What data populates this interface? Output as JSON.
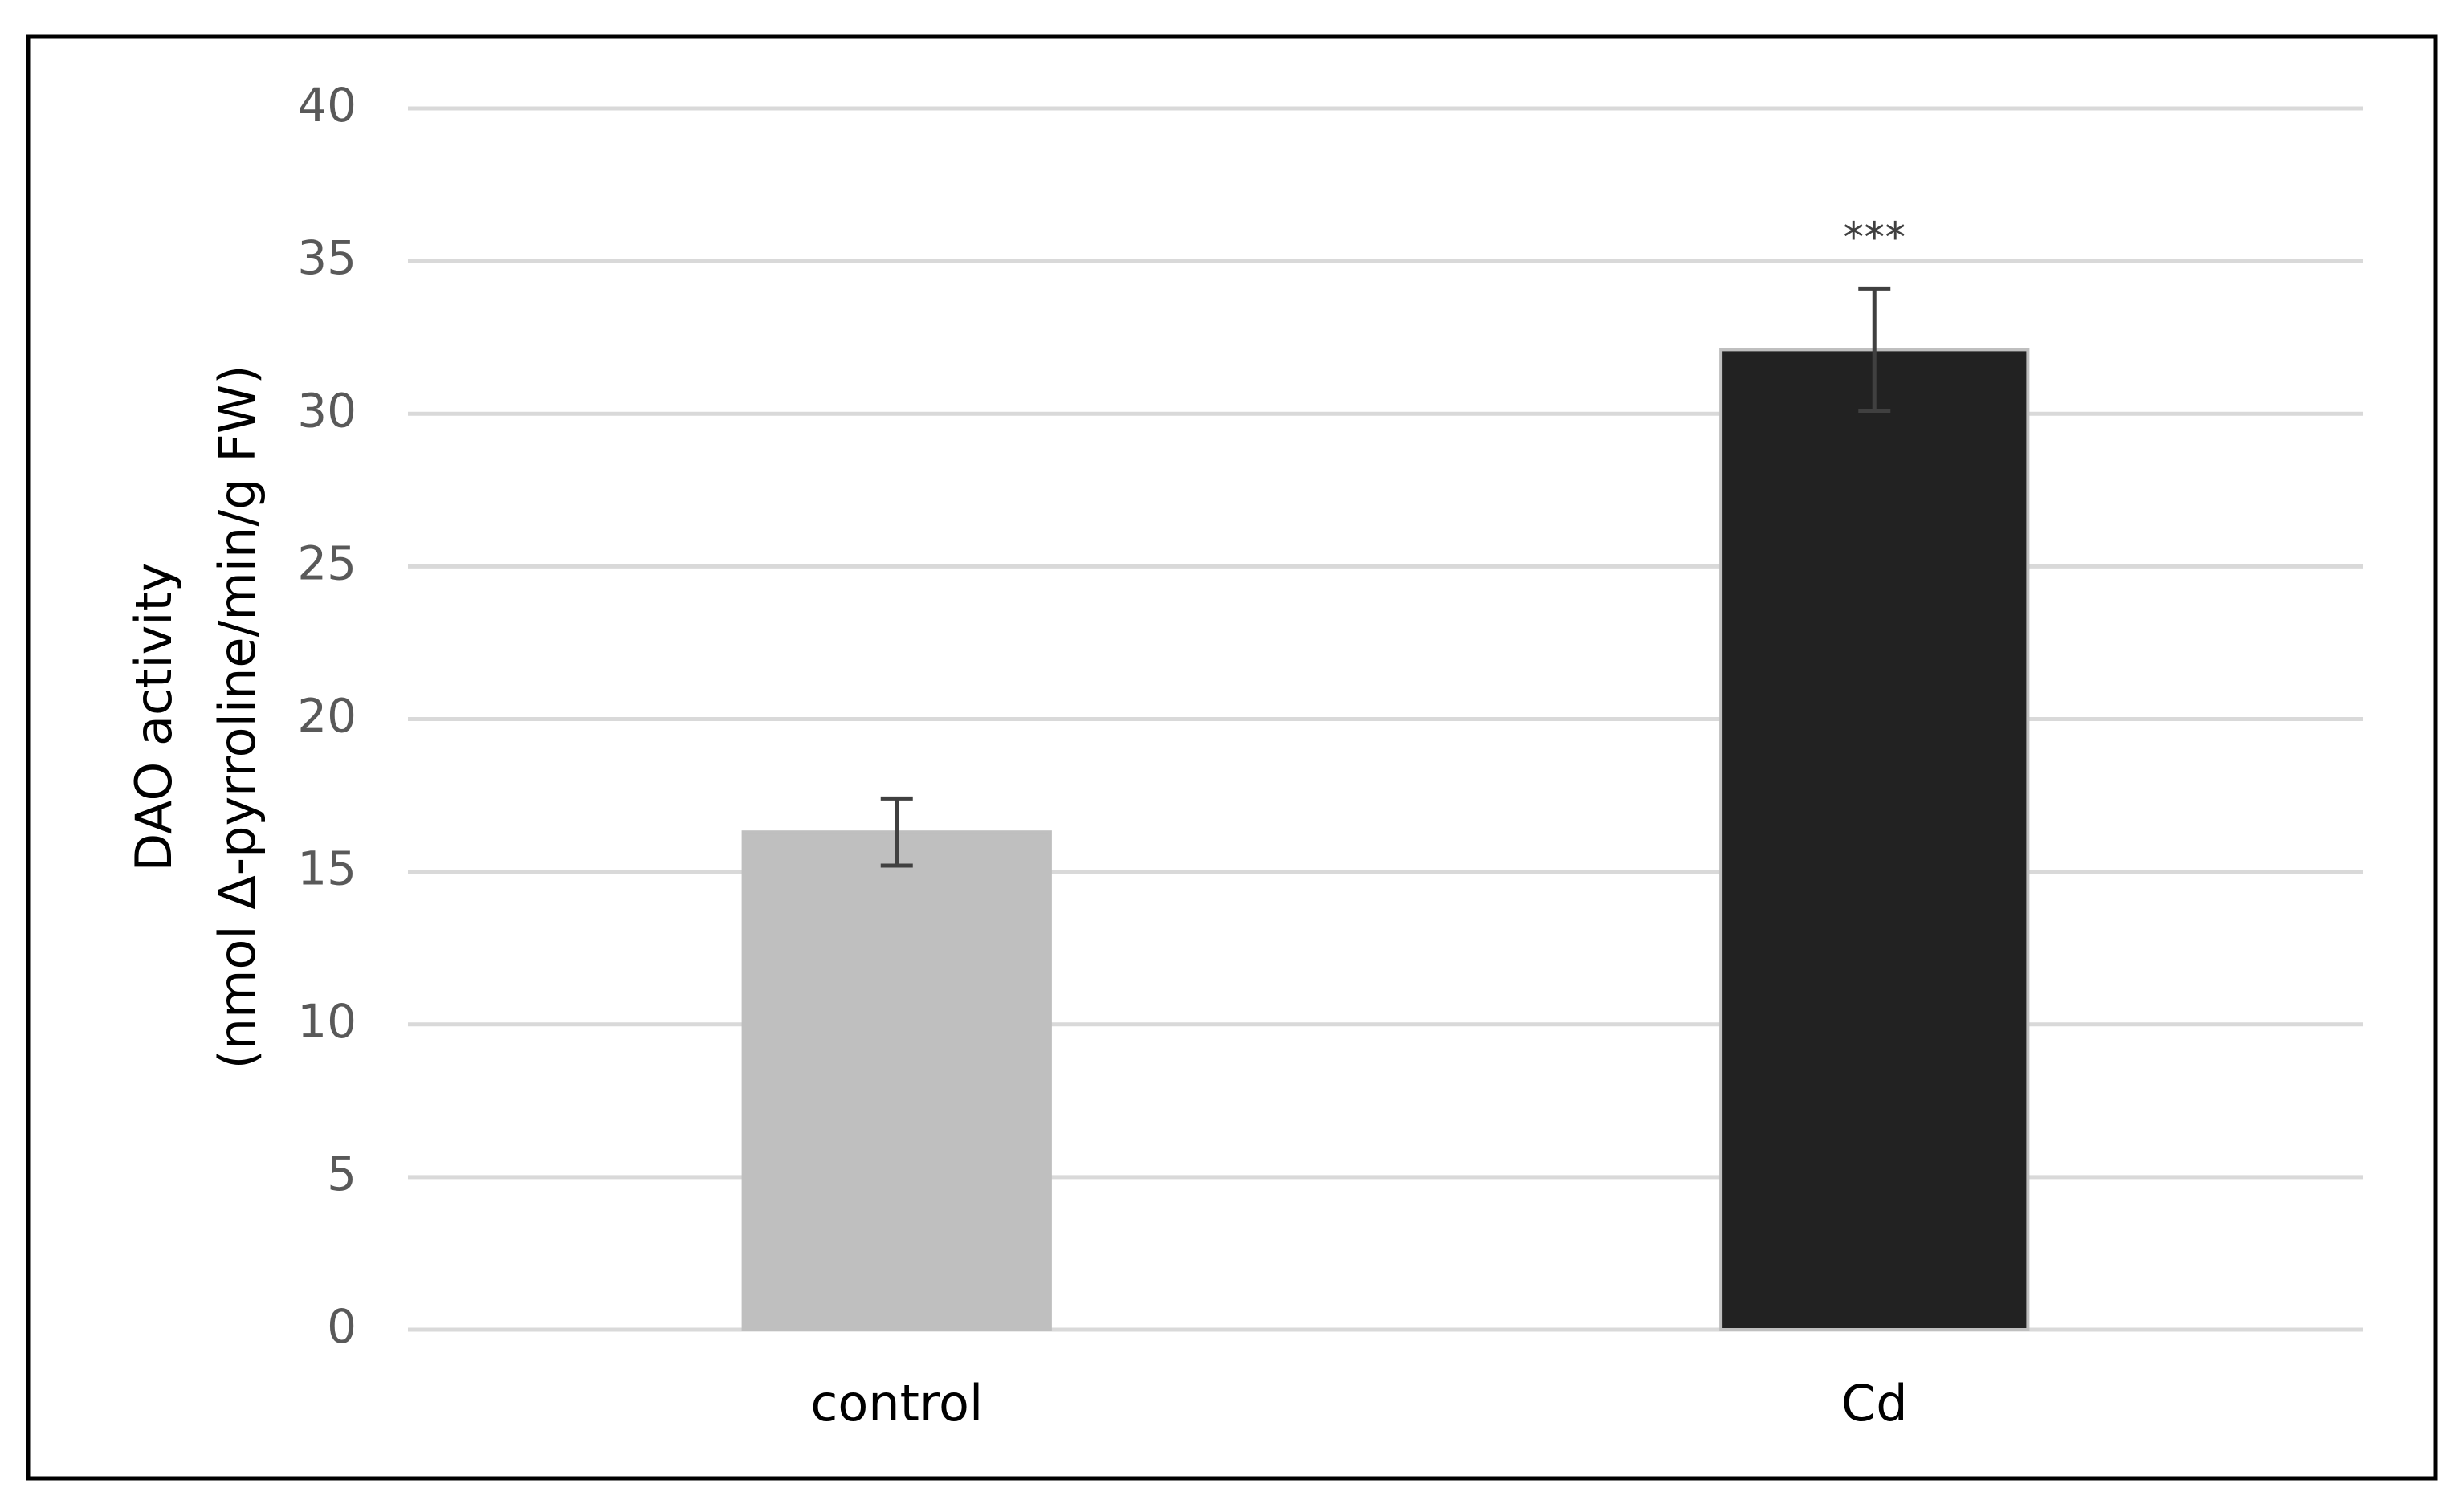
{
  "chart_data": {
    "type": "bar",
    "ylabel": [
      "DAO activity",
      "(nmol Δ-pyrroline/min/g FW)"
    ],
    "categories": [
      "control",
      "Cd"
    ],
    "values": [
      16.3,
      32.1
    ],
    "errors": [
      1.1,
      2.0
    ],
    "colors": [
      "#bfbfbf",
      "#222222"
    ],
    "annotations": [
      {
        "text": "***",
        "x": "Cd"
      }
    ],
    "ylim": [
      0,
      40
    ],
    "yticks": [
      0,
      5,
      10,
      15,
      20,
      25,
      30,
      35,
      40
    ],
    "grid": true
  }
}
